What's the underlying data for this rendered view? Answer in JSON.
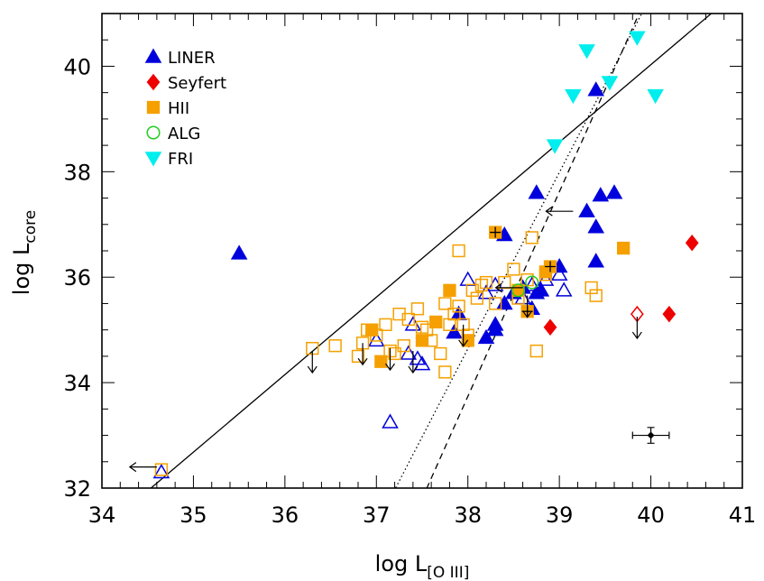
{
  "chart_data": {
    "type": "scatter",
    "title": "",
    "xlabel": {
      "main": "log L",
      "sub": "[O III]"
    },
    "ylabel": {
      "main": "log L",
      "sub": "core"
    },
    "xlim": [
      34,
      41
    ],
    "ylim": [
      32,
      41
    ],
    "xticks": [
      34,
      35,
      36,
      37,
      38,
      39,
      40,
      41
    ],
    "yticks": [
      32,
      34,
      36,
      38,
      40
    ],
    "grid": false,
    "legend_position": "top-left",
    "series": [
      {
        "name": "LINER",
        "marker": "triangle-up",
        "color": "#0000dd",
        "filled": [
          [
            35.5,
            36.45
          ],
          [
            38.3,
            35.0
          ],
          [
            38.3,
            35.1
          ],
          [
            38.4,
            35.5
          ],
          [
            38.4,
            36.8
          ],
          [
            38.5,
            35.7
          ],
          [
            38.6,
            35.8
          ],
          [
            38.7,
            35.4
          ],
          [
            38.75,
            35.7
          ],
          [
            38.75,
            37.6
          ],
          [
            38.8,
            35.75
          ],
          [
            39.0,
            36.2
          ],
          [
            39.3,
            37.25
          ],
          [
            39.4,
            39.55
          ],
          [
            39.4,
            36.3
          ],
          [
            39.4,
            36.95
          ],
          [
            39.45,
            37.55
          ],
          [
            39.6,
            37.6
          ],
          [
            37.85,
            34.95
          ],
          [
            37.9,
            35.3
          ],
          [
            38.2,
            34.85
          ]
        ],
        "open": [
          [
            34.65,
            32.3
          ],
          [
            37.0,
            34.8
          ],
          [
            37.15,
            33.25
          ],
          [
            37.35,
            34.55
          ],
          [
            37.4,
            35.1
          ],
          [
            37.45,
            34.45
          ],
          [
            37.5,
            34.35
          ],
          [
            38.0,
            35.95
          ],
          [
            38.2,
            35.7
          ],
          [
            38.3,
            35.85
          ],
          [
            38.6,
            35.6
          ],
          [
            38.7,
            35.85
          ],
          [
            38.85,
            35.95
          ],
          [
            39.05,
            35.75
          ],
          [
            39.0,
            36.05
          ]
        ]
      },
      {
        "name": "Seyfert",
        "marker": "diamond",
        "color": "#ee0000",
        "filled": [
          [
            38.9,
            35.05
          ],
          [
            40.2,
            35.3
          ],
          [
            40.45,
            36.65
          ]
        ],
        "open": [
          [
            39.85,
            35.3
          ]
        ]
      },
      {
        "name": "HII",
        "marker": "square",
        "color": "#f5a000",
        "filled": [
          [
            36.95,
            35.0
          ],
          [
            37.05,
            34.4
          ],
          [
            37.5,
            34.8
          ],
          [
            37.65,
            35.15
          ],
          [
            37.8,
            35.75
          ],
          [
            38.0,
            34.8
          ],
          [
            38.3,
            36.85
          ],
          [
            38.55,
            35.75
          ],
          [
            38.65,
            35.35
          ],
          [
            38.85,
            36.1
          ],
          [
            38.9,
            36.2
          ],
          [
            39.7,
            36.55
          ]
        ],
        "open": [
          [
            34.65,
            32.35
          ],
          [
            36.3,
            34.65
          ],
          [
            36.55,
            34.7
          ],
          [
            36.8,
            34.5
          ],
          [
            36.85,
            34.75
          ],
          [
            36.9,
            35.0
          ],
          [
            37.0,
            34.9
          ],
          [
            37.1,
            35.1
          ],
          [
            37.15,
            34.6
          ],
          [
            37.2,
            34.55
          ],
          [
            37.25,
            35.3
          ],
          [
            37.3,
            34.7
          ],
          [
            37.35,
            35.2
          ],
          [
            37.45,
            35.4
          ],
          [
            37.5,
            35.05
          ],
          [
            37.55,
            35.0
          ],
          [
            37.6,
            34.8
          ],
          [
            37.7,
            34.55
          ],
          [
            37.75,
            34.2
          ],
          [
            37.8,
            35.1
          ],
          [
            37.85,
            35.3
          ],
          [
            37.9,
            35.45
          ],
          [
            37.95,
            35.1
          ],
          [
            38.0,
            34.9
          ],
          [
            38.05,
            35.75
          ],
          [
            38.1,
            35.6
          ],
          [
            38.15,
            35.85
          ],
          [
            38.2,
            35.9
          ],
          [
            38.3,
            35.5
          ],
          [
            38.4,
            35.9
          ],
          [
            38.5,
            36.15
          ],
          [
            38.55,
            35.6
          ],
          [
            38.65,
            35.95
          ],
          [
            38.7,
            36.75
          ],
          [
            38.75,
            34.6
          ],
          [
            38.85,
            36.05
          ],
          [
            39.35,
            35.8
          ],
          [
            39.4,
            35.65
          ],
          [
            37.75,
            35.5
          ],
          [
            37.9,
            36.5
          ]
        ]
      },
      {
        "name": "ALG",
        "marker": "circle",
        "color": "#22cc22",
        "filled": [],
        "open": [
          [
            38.55,
            35.75
          ],
          [
            38.7,
            35.9
          ]
        ]
      },
      {
        "name": "FRI",
        "marker": "triangle-down",
        "color": "#00eeee",
        "filled": [
          [
            38.95,
            38.5
          ],
          [
            39.15,
            39.45
          ],
          [
            39.3,
            40.3
          ],
          [
            39.55,
            39.7
          ],
          [
            39.85,
            40.55
          ],
          [
            40.05,
            39.45
          ]
        ],
        "open": []
      }
    ],
    "upper_limits": [
      [
        36.3,
        34.6
      ],
      [
        36.85,
        34.75
      ],
      [
        37.15,
        34.65
      ],
      [
        37.4,
        34.6
      ],
      [
        37.95,
        35.1
      ],
      [
        38.65,
        35.65
      ],
      [
        39.85,
        35.25
      ]
    ],
    "left_limits": [
      [
        34.6,
        32.4
      ],
      [
        38.6,
        35.8
      ],
      [
        39.15,
        37.25
      ]
    ],
    "plus_markers": [
      [
        38.3,
        36.85
      ],
      [
        38.65,
        35.35
      ],
      [
        38.9,
        36.2
      ]
    ],
    "error_bar_point": {
      "x": 40.0,
      "y": 33.0,
      "xerr": 0.2,
      "yerr": 0.15
    },
    "lines": [
      {
        "style": "solid",
        "points": [
          [
            34.4,
            31.8
          ],
          [
            41.0,
            41.5
          ]
        ]
      },
      {
        "style": "dashed",
        "points": [
          [
            37.5,
            31.8
          ],
          [
            40.0,
            41.5
          ]
        ]
      },
      {
        "style": "dotted",
        "points": [
          [
            37.15,
            31.8
          ],
          [
            40.05,
            41.5
          ]
        ]
      }
    ]
  }
}
